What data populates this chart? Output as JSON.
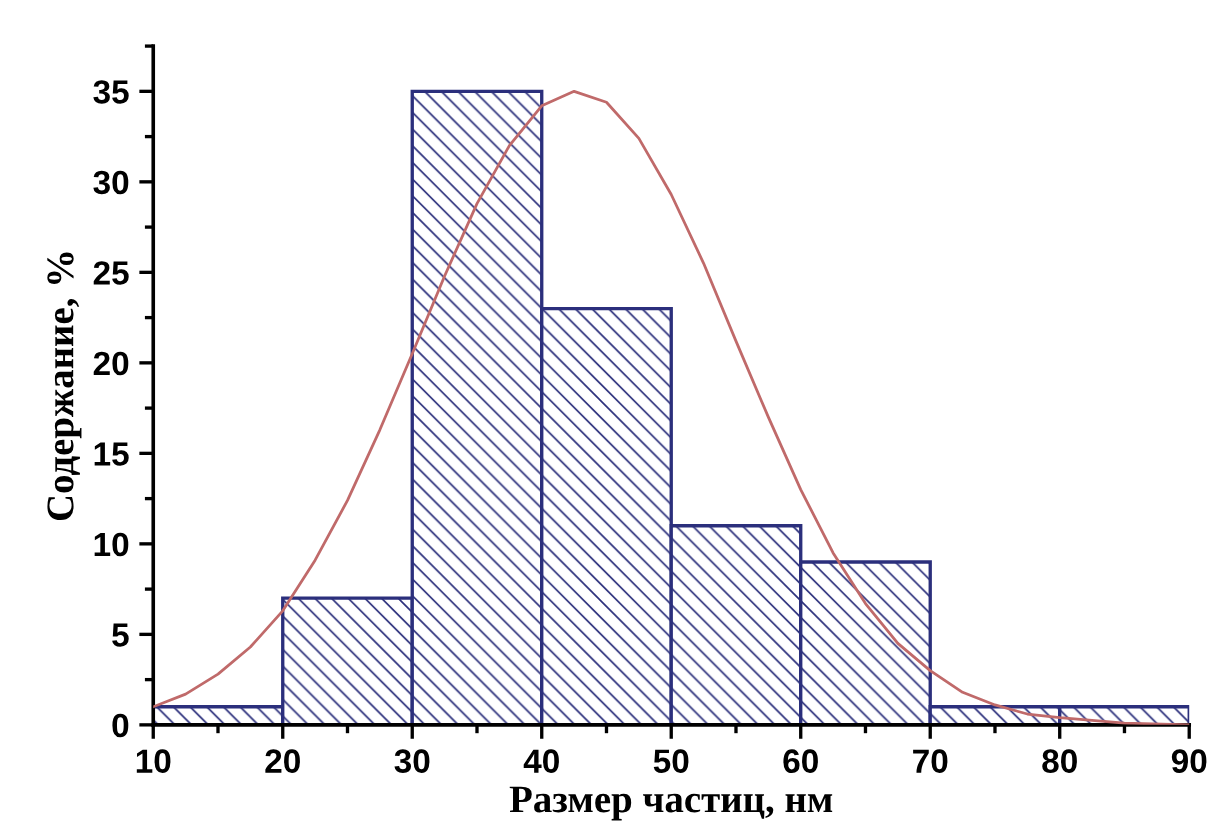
{
  "chart_data": {
    "type": "histogram",
    "xlabel": "Размер частиц, нм",
    "ylabel": "Содержание, %",
    "bins": [
      10,
      20,
      30,
      40,
      50,
      60,
      70,
      80,
      90
    ],
    "values": [
      1,
      7,
      35,
      23,
      11,
      9,
      1,
      1
    ],
    "color": "#2b2f7c",
    "series": [
      {
        "type": "line",
        "color": "#c06a6a",
        "x": [
          10,
          12.5,
          15,
          17.5,
          20,
          22.5,
          25,
          27.5,
          30,
          32.5,
          35,
          37.5,
          40,
          42.5,
          45,
          47.5,
          50,
          52.5,
          55,
          57.5,
          60,
          62.5,
          65,
          67.5,
          70,
          72.5,
          75,
          77.5,
          80,
          85,
          90
        ],
        "values": [
          1.0,
          1.7,
          2.8,
          4.3,
          6.3,
          9.1,
          12.4,
          16.3,
          20.5,
          24.8,
          28.8,
          32.0,
          34.2,
          35.0,
          34.4,
          32.4,
          29.3,
          25.5,
          21.2,
          17.0,
          13.0,
          9.5,
          6.7,
          4.5,
          3.0,
          1.8,
          1.1,
          0.6,
          0.4,
          0.1,
          0.0
        ]
      }
    ],
    "xlim": [
      10,
      90
    ],
    "xticks": [
      10,
      20,
      30,
      40,
      50,
      60,
      70,
      80,
      90
    ],
    "ylim": [
      0,
      37.5
    ],
    "yticks": [
      0,
      5,
      10,
      15,
      20,
      25,
      30,
      35
    ],
    "grid": false,
    "legend": false
  }
}
